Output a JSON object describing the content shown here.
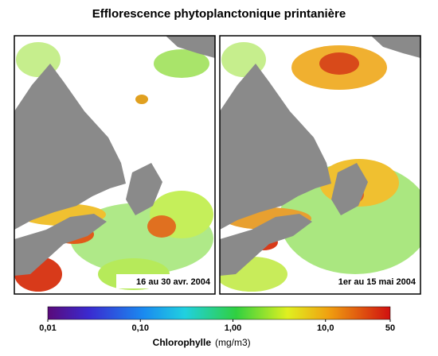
{
  "title": "Efflorescence phytoplanctonique printanière",
  "panels": [
    {
      "label": "16 au 30 avr. 2004"
    },
    {
      "label": "1er au 15 mai 2004"
    }
  ],
  "colorbar": {
    "label": "Chlorophylle",
    "unit": "(mg/m3)",
    "range": [
      0.01,
      50
    ],
    "log": true,
    "ticks": [
      {
        "value": 0.01,
        "label": "0,01"
      },
      {
        "value": 0.1,
        "label": "0,10"
      },
      {
        "value": 1,
        "label": "1,00"
      },
      {
        "value": 10,
        "label": "10,0"
      },
      50
    ]
  }
}
